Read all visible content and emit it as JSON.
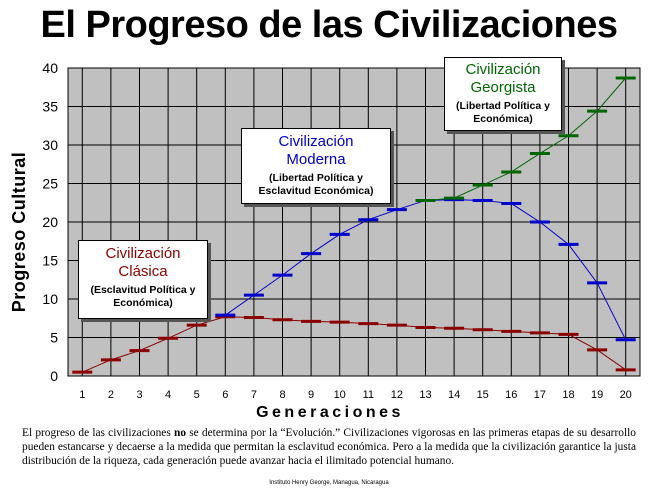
{
  "title": "El Progreso de las Civilizaciones",
  "description_parts": {
    "p1": "El progreso de las civilizaciones ",
    "bold": "no",
    "p2": " se determina por la “Evolución.” Civilizaciones vigorosas en las primeras etapas de su desarrollo pueden estancarse y decaerse a la medida que permitan la esclavitud económica. Pero a la medida que la civilización garantice la justa distribución de la riqueza, cada generación puede avanzar hacia el ilimitado potencial humano."
  },
  "credit": "Instituto Henry George, Managua, Nicaragua",
  "annotations": [
    {
      "name": "Civilización Clásica",
      "subtitle": "(Esclavitud Política y Económica)",
      "color": "#8b0000"
    },
    {
      "name": "Civilización Moderna",
      "subtitle": "(Libertad Política y Esclavitud Económica)",
      "color": "#0000cc"
    },
    {
      "name": "Civilización Georgista",
      "subtitle": "(Libertad Política y Económica)",
      "color": "#006600"
    }
  ],
  "chart_data": {
    "type": "line",
    "xlabel": "Generaciones",
    "ylabel": "Progreso Cultural",
    "x": [
      1,
      2,
      3,
      4,
      5,
      6,
      7,
      8,
      9,
      10,
      11,
      12,
      13,
      14,
      15,
      16,
      17,
      18,
      19,
      20
    ],
    "xlim": [
      0.5,
      20.5
    ],
    "ylim": [
      0,
      40
    ],
    "yticks": [
      0,
      5,
      10,
      15,
      20,
      25,
      30,
      35,
      40
    ],
    "grid": true,
    "plot_background": "#c0c0c0",
    "series": [
      {
        "name": "Civilización Clásica",
        "color": "#8b0000",
        "x": [
          1,
          2,
          3,
          4,
          5,
          6,
          7,
          8,
          9,
          10,
          11,
          12,
          13,
          14,
          15,
          16,
          17,
          18,
          19,
          20
        ],
        "values": [
          0.5,
          2.1,
          3.3,
          4.9,
          6.6,
          7.7,
          7.6,
          7.3,
          7.1,
          7.0,
          6.8,
          6.6,
          6.3,
          6.2,
          6.0,
          5.8,
          5.6,
          5.4,
          3.4,
          0.8
        ]
      },
      {
        "name": "Civilización Moderna",
        "color": "#0000cc",
        "x": [
          6,
          7,
          8,
          9,
          10,
          11,
          12,
          13,
          14,
          15,
          16,
          17,
          18,
          19,
          20
        ],
        "values": [
          7.9,
          10.5,
          13.1,
          15.9,
          18.4,
          20.3,
          21.6,
          22.8,
          22.9,
          22.8,
          22.4,
          20.0,
          17.1,
          12.1,
          4.7
        ]
      },
      {
        "name": "Civilización Georgista",
        "color": "#006600",
        "x": [
          13,
          14,
          15,
          16,
          17,
          18,
          19,
          20
        ],
        "values": [
          22.8,
          23.1,
          24.8,
          26.5,
          28.9,
          31.2,
          34.4,
          38.7
        ]
      }
    ]
  }
}
